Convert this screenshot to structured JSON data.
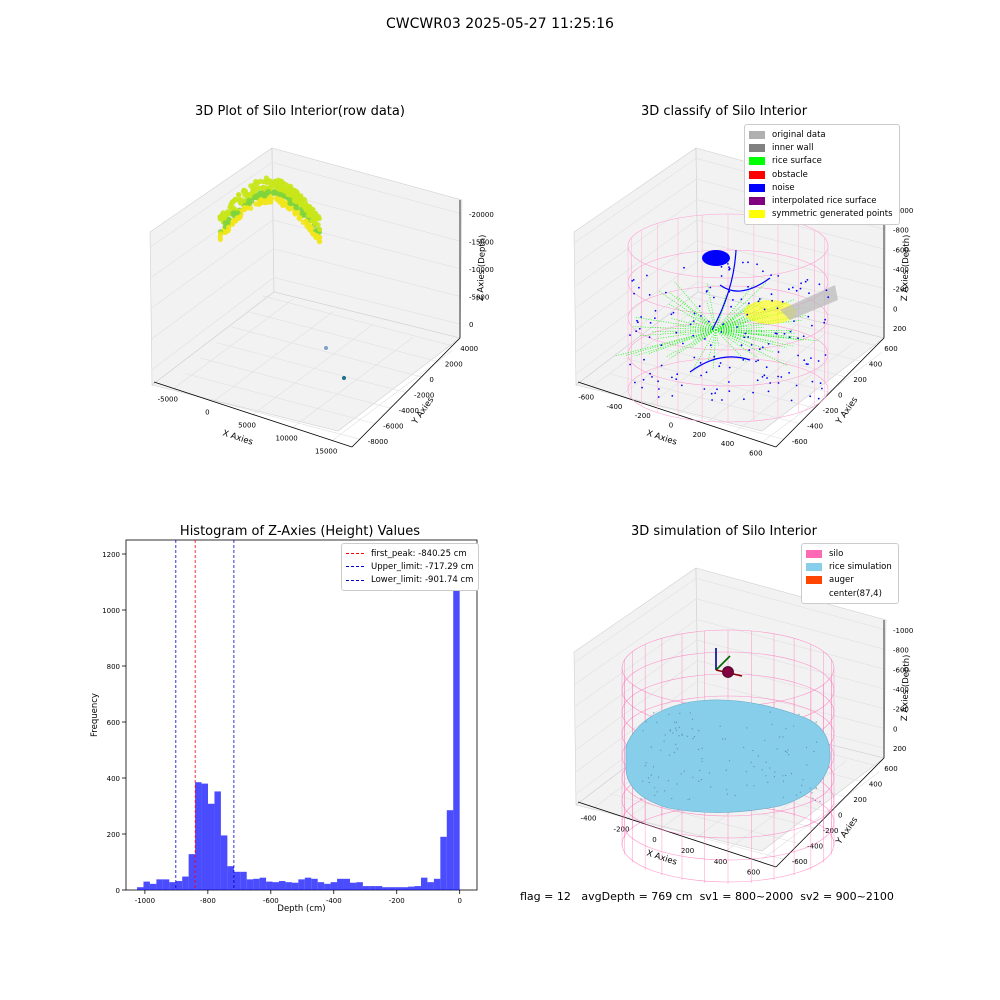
{
  "suptitle": "CWCWR03 2025-05-27 11:25:16",
  "status_line": {
    "flag": "flag = 12",
    "avg_depth": "avgDepth = 769 cm",
    "sv1": "sv1 = 800~2000",
    "sv2": "sv2 = 900~2100"
  },
  "colors": {
    "original_data": "#b0b0b0",
    "inner_wall": "#808080",
    "rice_surface": "#00ff00",
    "obstacle": "#ff0000",
    "noise": "#0000ff",
    "interpolated": "#800080",
    "symmetric": "#ffff00",
    "silo": "#ff69b4",
    "rice_sim": "#87ceeb",
    "auger": "#ff4500",
    "hist_bar": "#0000ff",
    "first_peak": "#ff0000",
    "limits": "#0000cc"
  },
  "chart_data": [
    {
      "type": "scatter",
      "title": "3D Plot of Silo Interior(row data)",
      "xlabel": "X Axies",
      "ylabel": "Y Axies",
      "zlabel": "Z Axies (Depth)",
      "x_ticks": [
        "-5000",
        "0",
        "5000",
        "10000",
        "15000"
      ],
      "y_ticks": [
        "-8000",
        "-6000",
        "-4000",
        "-2000",
        "0",
        "2000",
        "4000"
      ],
      "z_ticks": [
        "0",
        "-5000",
        "-10000",
        "-15000",
        "-20000"
      ]
    },
    {
      "type": "scatter",
      "title": "3D classify of Silo Interior",
      "xlabel": "X Axies",
      "ylabel": "Y Axies",
      "zlabel": "Z Axies (Depth)",
      "x_ticks": [
        "-600",
        "-400",
        "-200",
        "0",
        "200",
        "400",
        "600"
      ],
      "y_ticks": [
        "-600",
        "-400",
        "-200",
        "0",
        "200",
        "400",
        "600"
      ],
      "z_ticks": [
        "200",
        "0",
        "-200",
        "-400",
        "-600",
        "-800",
        "-1000"
      ],
      "legend": [
        {
          "label": "original data",
          "color": "#b0b0b0"
        },
        {
          "label": "inner wall",
          "color": "#808080"
        },
        {
          "label": "rice surface",
          "color": "#00ff00"
        },
        {
          "label": "obstacle",
          "color": "#ff0000"
        },
        {
          "label": "noise",
          "color": "#0000ff"
        },
        {
          "label": "interpolated rice surface",
          "color": "#800080"
        },
        {
          "label": "symmetric generated points",
          "color": "#ffff00"
        }
      ]
    },
    {
      "type": "bar",
      "title": "Histogram of Z-Axies (Height) Values",
      "xlabel": "Depth (cm)",
      "ylabel": "Frequency",
      "xlim": [
        -1060,
        55
      ],
      "ylim": [
        0,
        1250
      ],
      "x_ticks": [
        -1000,
        -800,
        -600,
        -400,
        -200,
        0
      ],
      "y_ticks": [
        0,
        200,
        400,
        600,
        800,
        1000,
        1200
      ],
      "bin_start": -1025,
      "bin_width": 20.5,
      "values": [
        10,
        30,
        22,
        38,
        38,
        28,
        32,
        48,
        128,
        385,
        380,
        308,
        352,
        195,
        85,
        65,
        65,
        38,
        40,
        44,
        30,
        28,
        32,
        28,
        26,
        38,
        44,
        40,
        28,
        22,
        28,
        40,
        40,
        26,
        28,
        14,
        14,
        14,
        10,
        10,
        10,
        10,
        12,
        14,
        44,
        28,
        40,
        190,
        285,
        1195
      ],
      "vlines": [
        {
          "label": "first_peak: -840.25 cm",
          "x": -840.25,
          "color": "#ff0000"
        },
        {
          "label": "Upper_limit: -717.29 cm",
          "x": -717.29,
          "color": "#0000cc"
        },
        {
          "label": "Lower_limit: -901.74 cm",
          "x": -901.74,
          "color": "#0000cc"
        }
      ]
    },
    {
      "type": "scatter",
      "title": "3D simulation of Silo Interior",
      "xlabel": "X Axies",
      "ylabel": "Y Axies",
      "zlabel": "Z Axies (Depth)",
      "x_ticks": [
        "-400",
        "-200",
        "0",
        "200",
        "400",
        "600"
      ],
      "y_ticks": [
        "-600",
        "-400",
        "-200",
        "0",
        "200",
        "400",
        "600"
      ],
      "z_ticks": [
        "200",
        "0",
        "-200",
        "-400",
        "-600",
        "-800",
        "-1000"
      ],
      "legend": [
        {
          "label": "silo",
          "color": "#ff69b4"
        },
        {
          "label": "rice simulation",
          "color": "#87ceeb"
        },
        {
          "label": "auger",
          "color": "#ff4500"
        },
        {
          "label": "center(87,4)",
          "color": ""
        }
      ]
    }
  ]
}
